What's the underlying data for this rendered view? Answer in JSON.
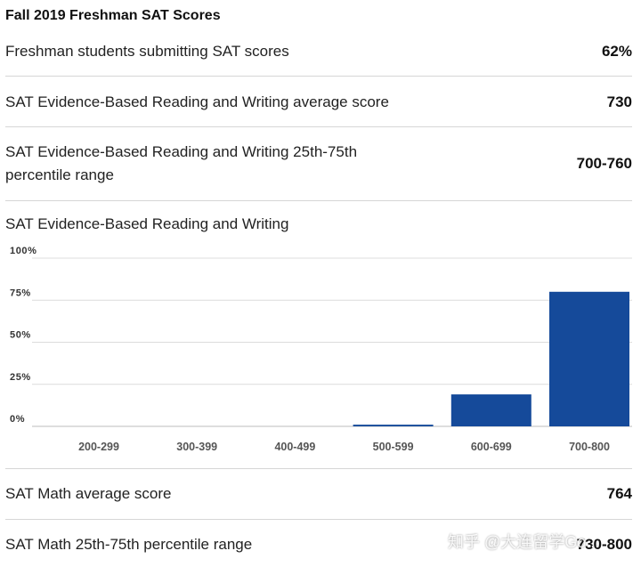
{
  "title": "Fall 2019 Freshman SAT Scores",
  "rows": [
    {
      "label": "Freshman students submitting SAT scores",
      "value": "62%"
    },
    {
      "label": "SAT Evidence-Based Reading and Writing average score",
      "value": "730"
    },
    {
      "label_line1": "SAT Evidence-Based Reading and Writing 25th-75th",
      "label_line2": "percentile range",
      "value": "700-760"
    }
  ],
  "chart_title": "SAT Evidence-Based Reading and Writing",
  "chart_data": {
    "type": "bar",
    "categories": [
      "200-299",
      "300-399",
      "400-499",
      "500-599",
      "600-699",
      "700-800"
    ],
    "values": [
      0,
      0,
      0,
      1,
      19,
      80
    ],
    "ylim": [
      0,
      100
    ],
    "yticks": [
      "0%",
      "25%",
      "50%",
      "75%",
      "100%"
    ],
    "grid": true,
    "bar_color": "#154a9a"
  },
  "math_rows": [
    {
      "label": "SAT Math average score",
      "value": "764"
    },
    {
      "label": "SAT Math 25th-75th percentile range",
      "value": "730-800"
    }
  ],
  "watermark": "知乎 @大连留学Go..."
}
